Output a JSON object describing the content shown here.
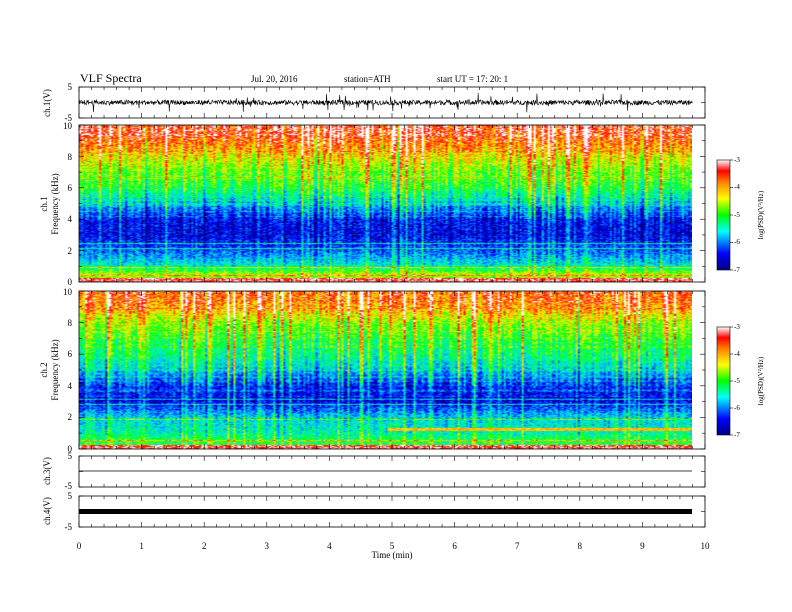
{
  "header": {
    "title": "VLF  Spectra",
    "date": "Jul.  20,  2016",
    "station": "station=ATH",
    "start": "start  UT  =    17: 20: 1"
  },
  "panels": {
    "ch1_wave": {
      "ylabel": "ch.1(V)",
      "ticks": [
        "5",
        "-5"
      ]
    },
    "ch1_spec": {
      "ylabel_ch": "ch.1",
      "ylabel_freq": "Frequency  (kHz)",
      "ticks": [
        "0",
        "2",
        "4",
        "6",
        "8",
        "10"
      ]
    },
    "ch2_spec": {
      "ylabel_ch": "ch.2",
      "ylabel_freq": "Frequency  (kHz)",
      "ticks": [
        "0",
        "2",
        "4",
        "6",
        "8",
        "10"
      ]
    },
    "ch3_wave": {
      "ylabel": "ch.3(V)",
      "ticks": [
        "5",
        "-5"
      ]
    },
    "ch4_wave": {
      "ylabel": "ch.4(V)",
      "ticks": [
        "5",
        "-5"
      ]
    }
  },
  "colorbar1": {
    "label": "log(PSD)(V²/Hz)",
    "ticks": [
      "-3",
      "-4",
      "-5",
      "-6",
      "-7"
    ]
  },
  "colorbar2": {
    "label": "log(PSD)(V²/Hz)",
    "ticks": [
      "-3",
      "-4",
      "-5",
      "-6",
      "-7"
    ]
  },
  "xaxis": {
    "label": "Time  (min)",
    "ticks": [
      "0",
      "1",
      "2",
      "3",
      "4",
      "5",
      "6",
      "7",
      "8",
      "9",
      "10"
    ]
  },
  "chart_data": {
    "type": "heatmap",
    "title": "VLF  Spectra",
    "x_range_min": [
      0,
      10
    ],
    "data_extent_min": 9.8,
    "frequency_range_khz": [
      0,
      10
    ],
    "psd_log_range": [
      -7,
      -3
    ],
    "voltage_range": [
      -5,
      5
    ],
    "colormap": [
      "#00008b",
      "#0000ff",
      "#00ffff",
      "#00ff00",
      "#ffff00",
      "#ff8000",
      "#ff0000"
    ],
    "ch1_psd_profile": [
      {
        "khz": 0.5,
        "log_psd": -4.5
      },
      {
        "khz": 1.0,
        "log_psd": -5.5
      },
      {
        "khz": 2.0,
        "log_psd": -6.2
      },
      {
        "khz": 3.0,
        "log_psd": -6.6
      },
      {
        "khz": 4.0,
        "log_psd": -6.5
      },
      {
        "khz": 5.0,
        "log_psd": -5.8
      },
      {
        "khz": 6.0,
        "log_psd": -5.0
      },
      {
        "khz": 7.0,
        "log_psd": -4.7
      },
      {
        "khz": 8.0,
        "log_psd": -4.2
      },
      {
        "khz": 9.0,
        "log_psd": -3.6
      },
      {
        "khz": 10.0,
        "log_psd": -3.3
      }
    ],
    "ch2_psd_profile": [
      {
        "khz": 0.5,
        "log_psd": -5.0
      },
      {
        "khz": 1.0,
        "log_psd": -5.4
      },
      {
        "khz": 2.0,
        "log_psd": -5.7
      },
      {
        "khz": 3.0,
        "log_psd": -6.6
      },
      {
        "khz": 4.0,
        "log_psd": -6.4
      },
      {
        "khz": 5.0,
        "log_psd": -5.7
      },
      {
        "khz": 6.0,
        "log_psd": -5.2
      },
      {
        "khz": 7.0,
        "log_psd": -4.9
      },
      {
        "khz": 8.0,
        "log_psd": -4.5
      },
      {
        "khz": 9.0,
        "log_psd": -3.8
      },
      {
        "khz": 10.0,
        "log_psd": -3.5
      }
    ],
    "ch1_wave_rms_v": 0.8,
    "ch3_wave_level_v": 0,
    "ch4_wave_level_v": 0
  }
}
